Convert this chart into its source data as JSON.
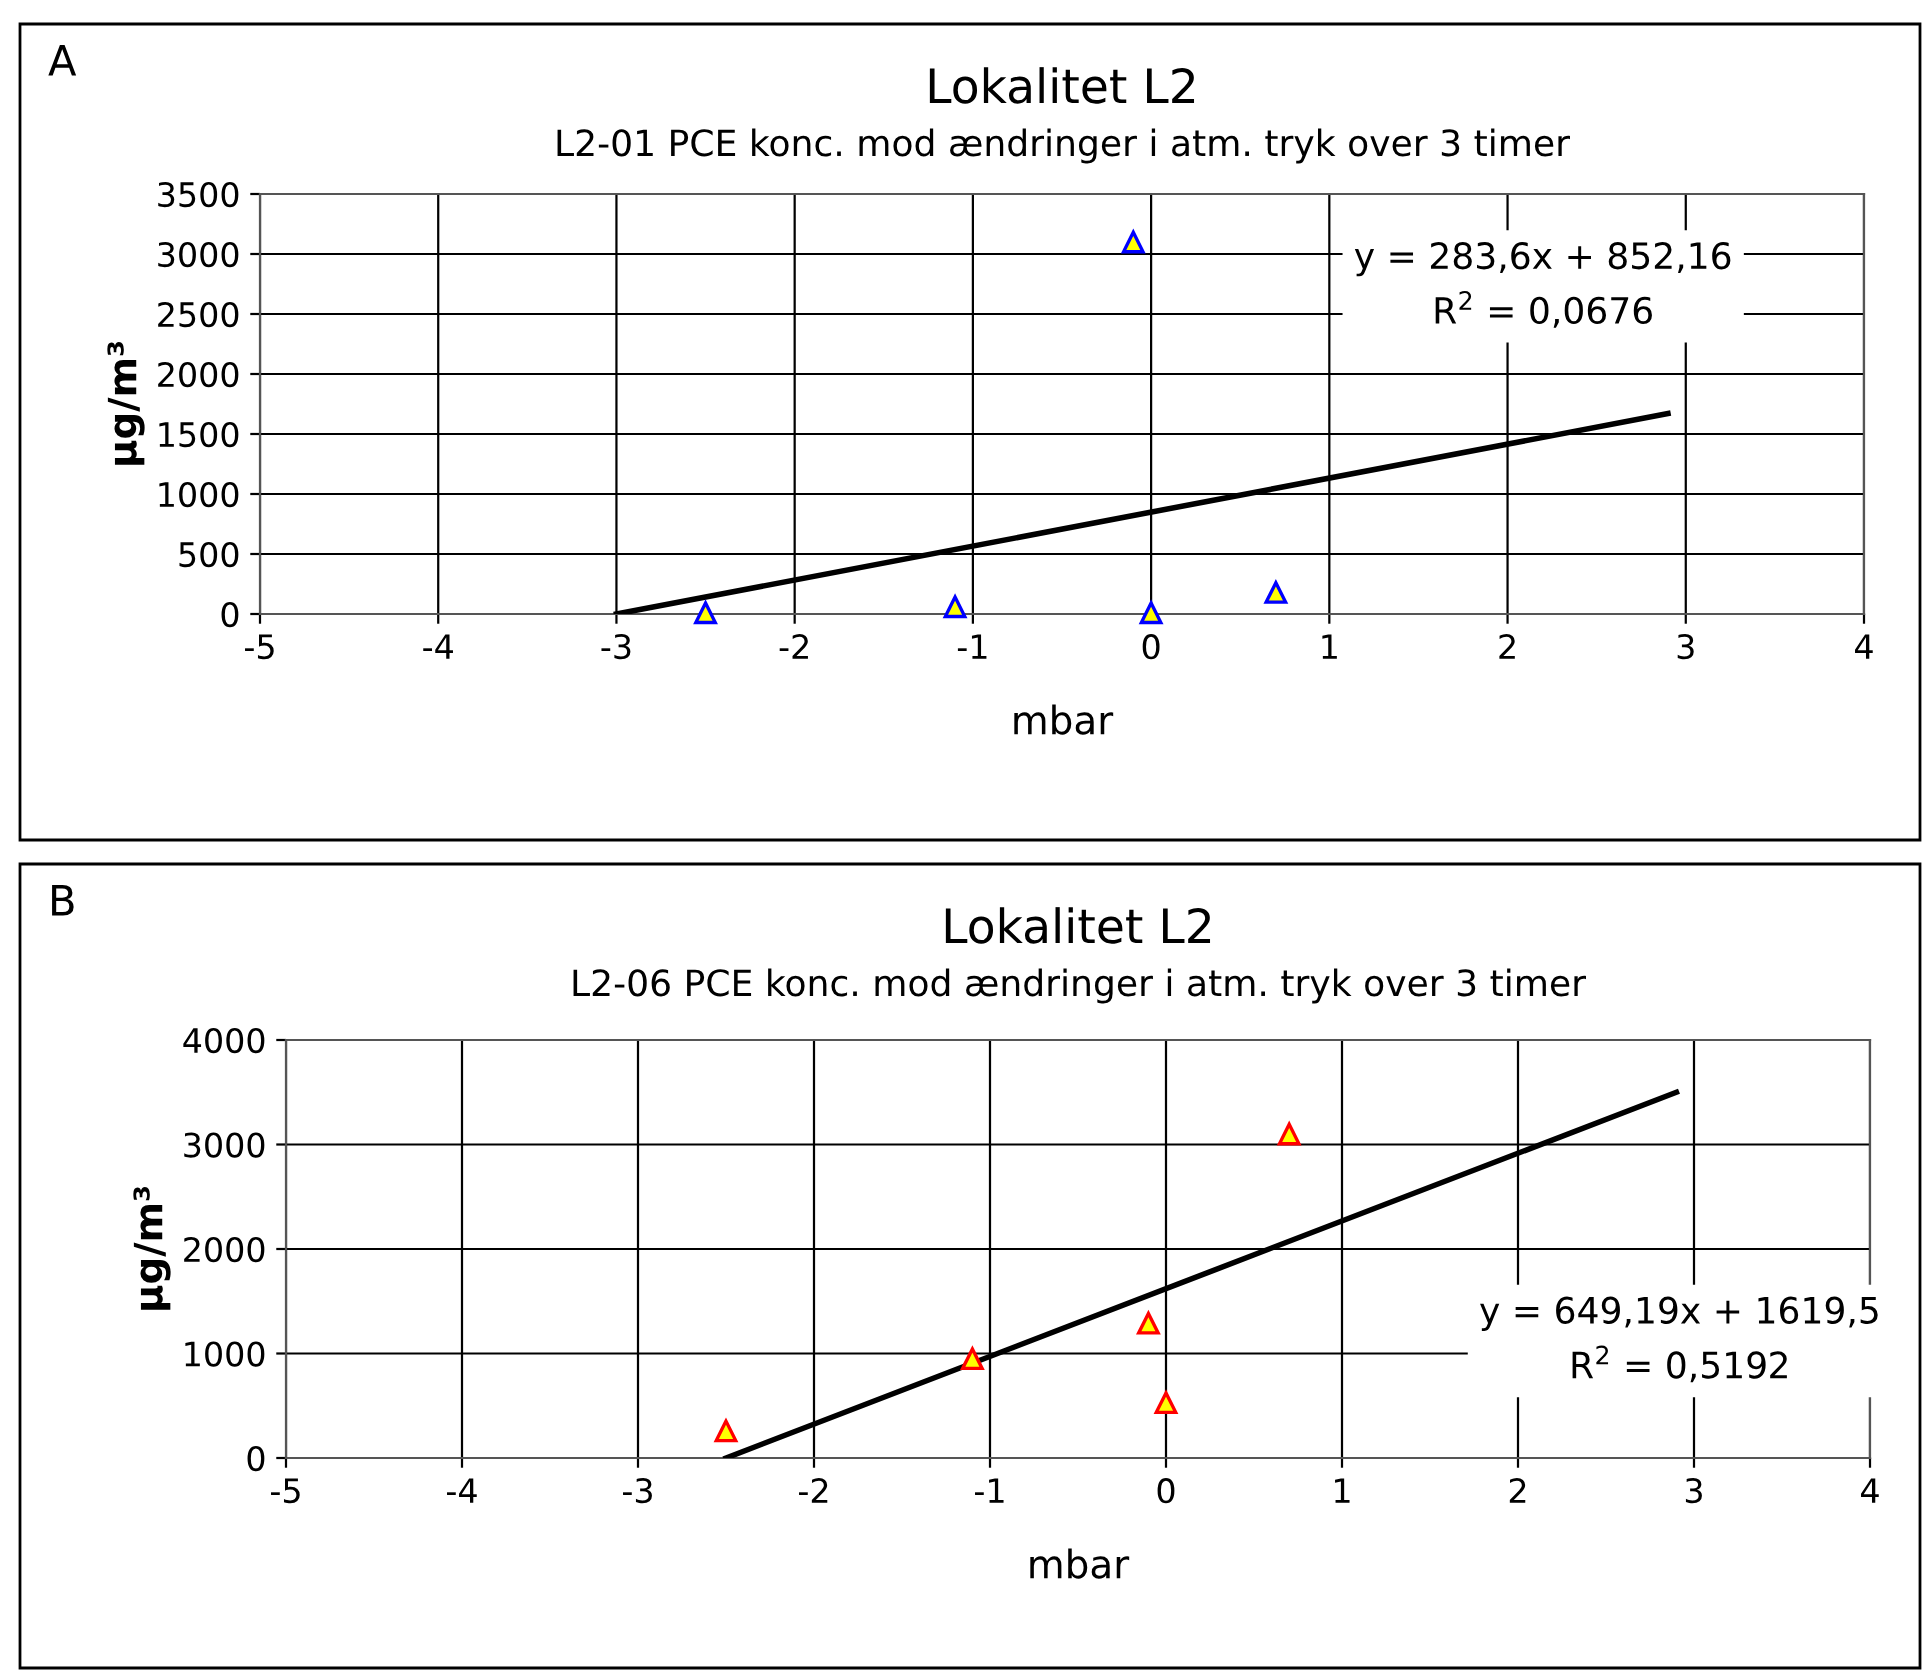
{
  "chart_data": [
    {
      "type": "scatter",
      "title": "Lokalitet L2",
      "subtitle": "L2-01 PCE konc. mod ændringer i atm. tryk over 3 timer",
      "xlabel": "mbar",
      "ylabel": "µg/m³",
      "annotations": [
        "A",
        "y = 283,6x + 852,16\nR$^{2}$ = 0,0676"
      ],
      "series": [
        {
          "x": [
            -2.5,
            -1.1,
            -0.1,
            0,
            0.7
          ],
          "values": [
            10,
            60,
            3100,
            10,
            180
          ],
          "color": "#0000ff",
          "marker": "triangle"
        },
        {
          "type": "line",
          "x": [
            -3.0,
            2.9
          ],
          "values": [
            0,
            1670
          ],
          "color": "#000000",
          "line_style": "solid",
          "marker": "none"
        }
      ],
      "xlim": [
        -5,
        4
      ],
      "xticks": [
        -5,
        -4,
        -3,
        -2,
        -1,
        0,
        1,
        2,
        3,
        4
      ],
      "ylim": [
        0,
        3500
      ],
      "yticks": [
        0,
        500,
        1000,
        1500,
        2000,
        2500,
        3000,
        3500
      ],
      "grid": true,
      "legend": false
    },
    {
      "type": "scatter",
      "title": "Lokalitet L2",
      "subtitle": "L2-06 PCE konc. mod ændringer i atm. tryk over 3 timer",
      "xlabel": "mbar",
      "ylabel": "µg/m³",
      "annotations": [
        "B",
        "y = 649,19x + 1619,5\nR$^{2}$ = 0,5192"
      ],
      "series": [
        {
          "x": [
            -2.5,
            -1.1,
            -0.1,
            0,
            0.7
          ],
          "values": [
            260,
            950,
            1290,
            530,
            3100
          ],
          "color": "#ff0000",
          "marker": "triangle"
        },
        {
          "type": "line",
          "x": [
            -2.5,
            2.9
          ],
          "values": [
            0,
            3500
          ],
          "color": "#000000",
          "line_style": "solid",
          "marker": "none"
        }
      ],
      "xlim": [
        -5,
        4
      ],
      "xticks": [
        -5,
        -4,
        -3,
        -2,
        -1,
        0,
        1,
        2,
        3,
        4
      ],
      "ylim": [
        0,
        4000
      ],
      "yticks": [
        0,
        1000,
        2000,
        3000,
        4000
      ],
      "grid": true,
      "legend": false
    }
  ]
}
